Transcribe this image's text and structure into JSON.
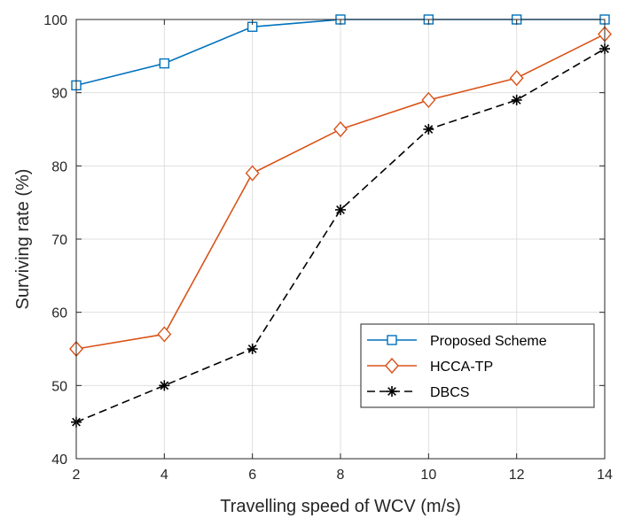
{
  "chart_data": {
    "type": "line",
    "xlabel": "Travelling speed of WCV (m/s)",
    "ylabel": "Surviving rate (%)",
    "xlim": [
      2,
      14
    ],
    "ylim": [
      40,
      100
    ],
    "xticks": [
      "2",
      "4",
      "6",
      "8",
      "10",
      "12",
      "14"
    ],
    "yticks": [
      "40",
      "50",
      "60",
      "70",
      "80",
      "90",
      "100"
    ],
    "grid": true,
    "legend_position": "lower-right",
    "x": [
      2,
      4,
      6,
      8,
      10,
      12,
      14
    ],
    "series": [
      {
        "name": "Proposed Scheme",
        "values": [
          91,
          94,
          99,
          100,
          100,
          100,
          100
        ],
        "color": "#0072BD",
        "marker": "square",
        "line": "solid"
      },
      {
        "name": "HCCA-TP",
        "values": [
          55,
          57,
          79,
          85,
          89,
          92,
          98
        ],
        "color": "#D95319",
        "marker": "diamond",
        "line": "solid"
      },
      {
        "name": "DBCS",
        "values": [
          45,
          50,
          55,
          74,
          85,
          89,
          96
        ],
        "color": "#000000",
        "marker": "asterisk",
        "line": "dashed"
      }
    ]
  }
}
